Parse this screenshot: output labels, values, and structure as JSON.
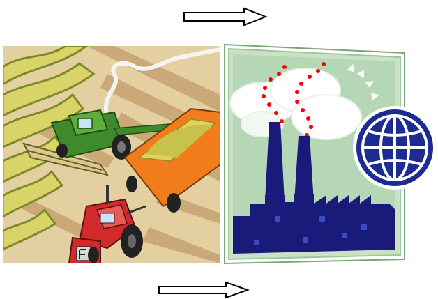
{
  "scene": {
    "left_panel": "agriculture-clipart",
    "right_panel": "industry-clipart",
    "icons": [
      "right-arrow-icon",
      "combine-harvester-icon",
      "tractor-icon",
      "grain-trailer-icon",
      "factory-icon",
      "globe-icon"
    ]
  },
  "colors": {
    "field_light": "#e7d6a6",
    "field_dark": "#c9a97a",
    "crop_yellow": "#d6d36a",
    "crop_green": "#8e9a2f",
    "harvester_green": "#3f8b2b",
    "trailer_orange": "#f07c1c",
    "tractor_red": "#d22a2a",
    "factory_navy": "#1a1a7a",
    "frame_green": "#c9e2c4",
    "smoke_red": "#ff0000",
    "globe_blue": "#1d2c92"
  }
}
